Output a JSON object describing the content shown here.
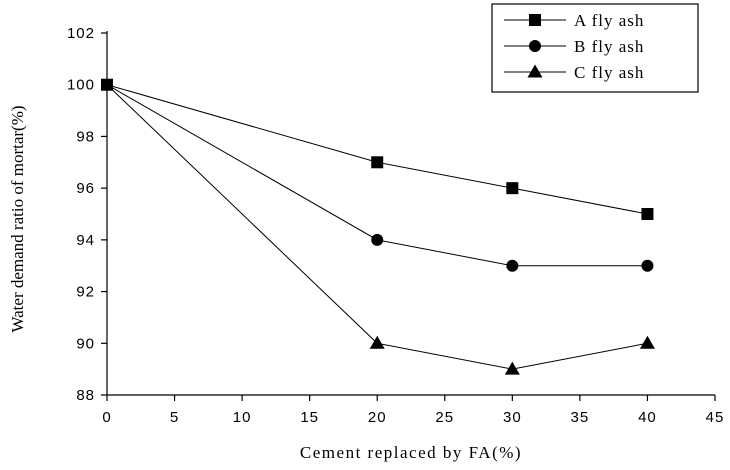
{
  "chart_data": {
    "type": "line",
    "xlabel": "Cement replaced by FA(%)",
    "ylabel": "Water demand ratio of mortar(%)",
    "xlim": [
      0,
      45
    ],
    "ylim": [
      88,
      102
    ],
    "xticks": [
      0,
      5,
      10,
      15,
      20,
      25,
      30,
      35,
      40,
      45
    ],
    "yticks": [
      88,
      90,
      92,
      94,
      96,
      98,
      100,
      102
    ],
    "grid": false,
    "legend_position": "top-right",
    "x": [
      0,
      20,
      30,
      40
    ],
    "series": [
      {
        "name": "A fly ash",
        "marker": "square",
        "values": [
          100,
          97,
          96,
          95
        ]
      },
      {
        "name": "B fly ash",
        "marker": "circle",
        "values": [
          100,
          94,
          93,
          93
        ]
      },
      {
        "name": "C fly ash",
        "marker": "triangle",
        "values": [
          100,
          90,
          89,
          90
        ]
      }
    ],
    "colors": {
      "line": "#000000",
      "marker": "#000000"
    }
  }
}
